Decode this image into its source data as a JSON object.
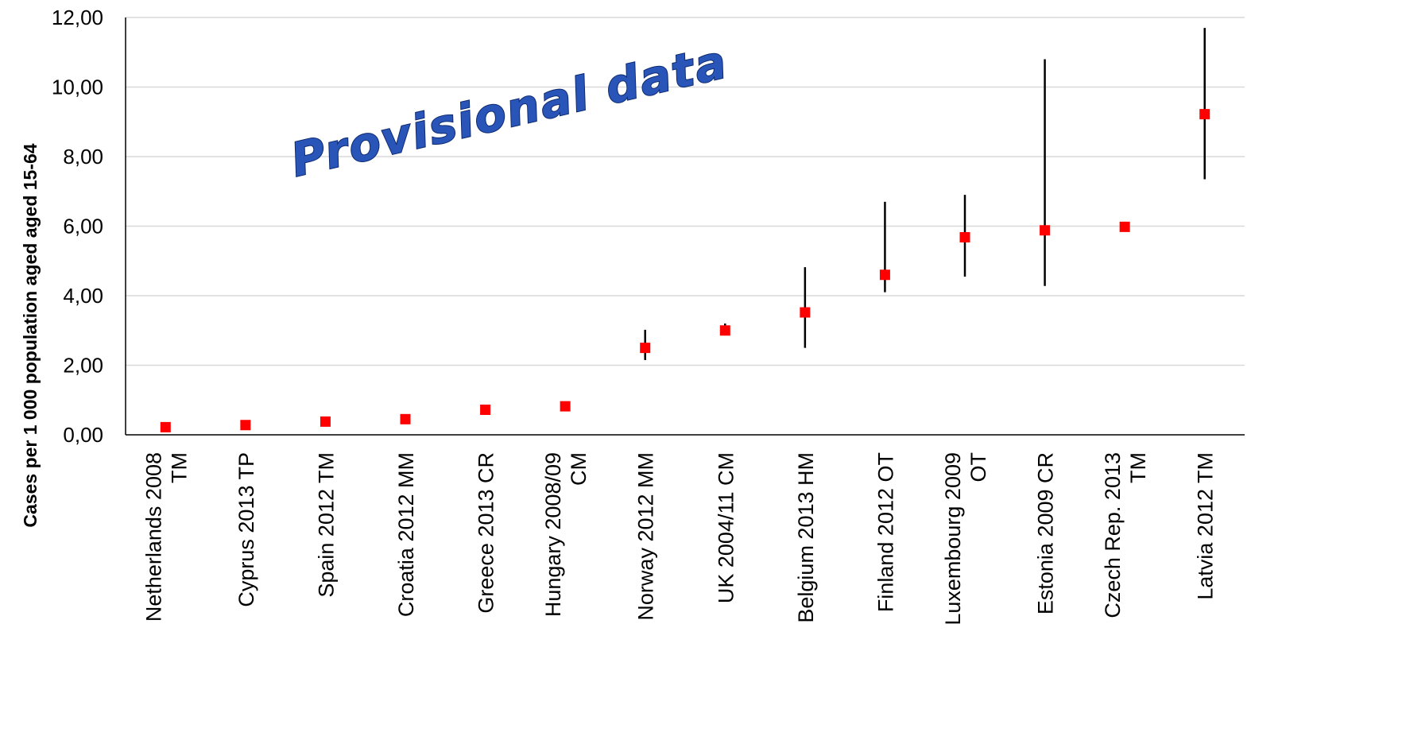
{
  "chart_data": {
    "type": "scatter",
    "ylabel": "Cases per 1 000 population  aged  aged  15-64",
    "ylim": [
      0,
      12
    ],
    "yticks": [
      "0,00",
      "2,00",
      "4,00",
      "6,00",
      "8,00",
      "10,00",
      "12,00"
    ],
    "grid": true,
    "annotation": "Provisional data",
    "colors": {
      "marker": "#ff0000",
      "error_bar": "#000000",
      "grid": "#d9d9d9",
      "annotation_fill": "#2a55b8",
      "annotation_stroke": "#0d2a70"
    },
    "categories": [
      [
        "Netherlands 2008",
        "TM"
      ],
      [
        "Cyprus 2013 TP"
      ],
      [
        "Spain 2012 TM"
      ],
      [
        "Croatia 2012 MM"
      ],
      [
        "Greece 2013 CR"
      ],
      [
        "Hungary 2008/09",
        "CM"
      ],
      [
        "Norway 2012 MM"
      ],
      [
        "UK 2004/11 CM"
      ],
      [
        "Belgium 2013 HM"
      ],
      [
        "Finland 2012 OT"
      ],
      [
        "Luxembourg 2009",
        "OT"
      ],
      [
        "Estonia 2009 CR"
      ],
      [
        "Czech Rep. 2013",
        "TM"
      ],
      [
        "Latvia 2012 TM"
      ]
    ],
    "values": [
      0.22,
      0.28,
      0.38,
      0.45,
      0.72,
      0.82,
      2.5,
      3.0,
      3.52,
      4.6,
      5.68,
      5.88,
      5.98,
      9.22
    ],
    "lower": [
      null,
      0.22,
      null,
      0.38,
      null,
      null,
      2.15,
      2.95,
      2.5,
      4.1,
      4.55,
      4.28,
      null,
      7.35
    ],
    "upper": [
      null,
      0.38,
      null,
      0.55,
      null,
      null,
      3.02,
      3.2,
      4.82,
      6.7,
      6.9,
      10.8,
      null,
      11.7
    ]
  }
}
